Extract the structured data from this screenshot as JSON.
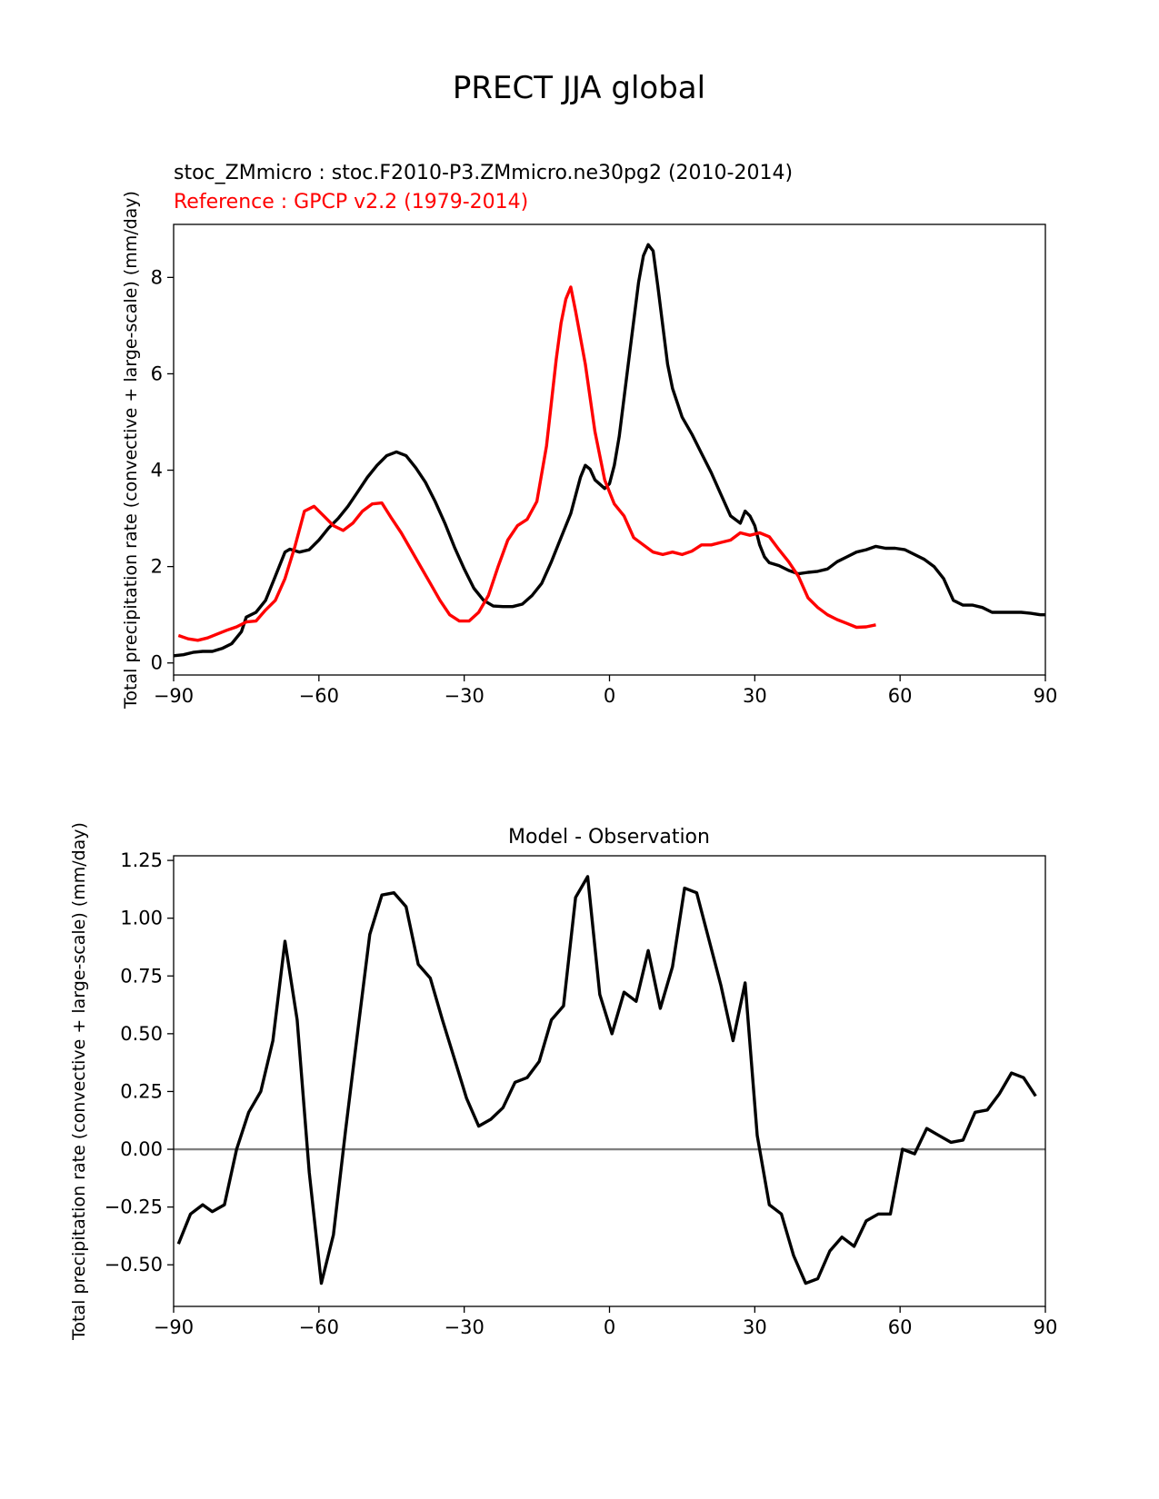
{
  "suptitle": "PRECT JJA global",
  "chart_data": [
    {
      "type": "line",
      "title_model": "stoc_ZMmicro : stoc.F2010-P3.ZMmicro.ne30pg2 (2010-2014)",
      "title_reference": "Reference : GPCP v2.2 (1979-2014)",
      "ylabel": "Total precipitation rate (convective + large-scale) (mm/day)",
      "xlim": [
        -90,
        90
      ],
      "ylim": [
        -0.25,
        9.1
      ],
      "xticks": [
        -90,
        -60,
        -30,
        0,
        30,
        60,
        90
      ],
      "xtick_labels": [
        "−90",
        "−60",
        "−30",
        "0",
        "30",
        "60",
        "90"
      ],
      "yticks": [
        0,
        2,
        4,
        6,
        8
      ],
      "ytick_labels": [
        "0",
        "2",
        "4",
        "6",
        "8"
      ],
      "series": [
        {
          "color": "#000000",
          "points": [
            [
              -90,
              0.15
            ],
            [
              -88,
              0.17
            ],
            [
              -86,
              0.22
            ],
            [
              -84,
              0.24
            ],
            [
              -82,
              0.24
            ],
            [
              -80,
              0.3
            ],
            [
              -78,
              0.4
            ],
            [
              -76,
              0.65
            ],
            [
              -75,
              0.95
            ],
            [
              -73,
              1.05
            ],
            [
              -71,
              1.3
            ],
            [
              -69,
              1.8
            ],
            [
              -67,
              2.3
            ],
            [
              -66,
              2.36
            ],
            [
              -64,
              2.3
            ],
            [
              -62,
              2.35
            ],
            [
              -60,
              2.55
            ],
            [
              -58,
              2.8
            ],
            [
              -56,
              3.0
            ],
            [
              -54,
              3.25
            ],
            [
              -52,
              3.55
            ],
            [
              -50,
              3.85
            ],
            [
              -48,
              4.1
            ],
            [
              -46,
              4.3
            ],
            [
              -44,
              4.38
            ],
            [
              -42,
              4.3
            ],
            [
              -40,
              4.05
            ],
            [
              -38,
              3.75
            ],
            [
              -36,
              3.35
            ],
            [
              -34,
              2.9
            ],
            [
              -32,
              2.4
            ],
            [
              -30,
              1.95
            ],
            [
              -28,
              1.55
            ],
            [
              -26,
              1.3
            ],
            [
              -24,
              1.18
            ],
            [
              -22,
              1.17
            ],
            [
              -20,
              1.17
            ],
            [
              -18,
              1.22
            ],
            [
              -16,
              1.4
            ],
            [
              -14,
              1.65
            ],
            [
              -12,
              2.1
            ],
            [
              -10,
              2.6
            ],
            [
              -8,
              3.1
            ],
            [
              -6,
              3.85
            ],
            [
              -5,
              4.1
            ],
            [
              -4,
              4.02
            ],
            [
              -3,
              3.8
            ],
            [
              -1,
              3.62
            ],
            [
              0,
              3.72
            ],
            [
              1,
              4.1
            ],
            [
              2,
              4.7
            ],
            [
              4,
              6.3
            ],
            [
              6,
              7.9
            ],
            [
              7,
              8.45
            ],
            [
              8,
              8.68
            ],
            [
              9,
              8.55
            ],
            [
              10,
              7.8
            ],
            [
              11,
              7.0
            ],
            [
              12,
              6.2
            ],
            [
              13,
              5.7
            ],
            [
              15,
              5.1
            ],
            [
              17,
              4.75
            ],
            [
              19,
              4.35
            ],
            [
              21,
              3.95
            ],
            [
              23,
              3.5
            ],
            [
              25,
              3.05
            ],
            [
              27,
              2.9
            ],
            [
              28,
              3.15
            ],
            [
              29,
              3.05
            ],
            [
              30,
              2.85
            ],
            [
              31,
              2.45
            ],
            [
              32,
              2.2
            ],
            [
              33,
              2.08
            ],
            [
              35,
              2.02
            ],
            [
              37,
              1.92
            ],
            [
              39,
              1.85
            ],
            [
              41,
              1.88
            ],
            [
              43,
              1.9
            ],
            [
              45,
              1.95
            ],
            [
              47,
              2.1
            ],
            [
              49,
              2.2
            ],
            [
              51,
              2.3
            ],
            [
              53,
              2.35
            ],
            [
              55,
              2.42
            ],
            [
              57,
              2.38
            ],
            [
              59,
              2.38
            ],
            [
              61,
              2.35
            ],
            [
              63,
              2.25
            ],
            [
              65,
              2.15
            ],
            [
              67,
              2.0
            ],
            [
              69,
              1.75
            ],
            [
              71,
              1.3
            ],
            [
              73,
              1.2
            ],
            [
              75,
              1.2
            ],
            [
              77,
              1.15
            ],
            [
              79,
              1.05
            ],
            [
              81,
              1.05
            ],
            [
              83,
              1.05
            ],
            [
              85,
              1.05
            ],
            [
              87,
              1.03
            ],
            [
              89,
              1.0
            ],
            [
              90,
              1.0
            ]
          ]
        },
        {
          "color": "#ff0000",
          "points": [
            [
              -89,
              0.57
            ],
            [
              -87,
              0.5
            ],
            [
              -85,
              0.47
            ],
            [
              -83,
              0.52
            ],
            [
              -81,
              0.6
            ],
            [
              -79,
              0.68
            ],
            [
              -77,
              0.75
            ],
            [
              -75,
              0.85
            ],
            [
              -73,
              0.87
            ],
            [
              -71,
              1.1
            ],
            [
              -69,
              1.3
            ],
            [
              -67,
              1.75
            ],
            [
              -65,
              2.4
            ],
            [
              -63,
              3.15
            ],
            [
              -61,
              3.25
            ],
            [
              -59,
              3.05
            ],
            [
              -57,
              2.85
            ],
            [
              -55,
              2.75
            ],
            [
              -53,
              2.9
            ],
            [
              -51,
              3.15
            ],
            [
              -49,
              3.3
            ],
            [
              -47,
              3.32
            ],
            [
              -45,
              3.0
            ],
            [
              -43,
              2.7
            ],
            [
              -41,
              2.35
            ],
            [
              -39,
              2.0
            ],
            [
              -37,
              1.65
            ],
            [
              -35,
              1.3
            ],
            [
              -33,
              1.0
            ],
            [
              -31,
              0.87
            ],
            [
              -29,
              0.87
            ],
            [
              -27,
              1.05
            ],
            [
              -25,
              1.4
            ],
            [
              -23,
              2.0
            ],
            [
              -21,
              2.55
            ],
            [
              -19,
              2.85
            ],
            [
              -17,
              2.98
            ],
            [
              -15,
              3.35
            ],
            [
              -13,
              4.5
            ],
            [
              -11,
              6.3
            ],
            [
              -10,
              7.05
            ],
            [
              -9,
              7.55
            ],
            [
              -8,
              7.8
            ],
            [
              -7,
              7.3
            ],
            [
              -5,
              6.2
            ],
            [
              -3,
              4.8
            ],
            [
              -1,
              3.8
            ],
            [
              1,
              3.3
            ],
            [
              3,
              3.05
            ],
            [
              5,
              2.6
            ],
            [
              7,
              2.45
            ],
            [
              9,
              2.3
            ],
            [
              11,
              2.25
            ],
            [
              13,
              2.3
            ],
            [
              15,
              2.25
            ],
            [
              17,
              2.32
            ],
            [
              19,
              2.45
            ],
            [
              21,
              2.45
            ],
            [
              23,
              2.5
            ],
            [
              25,
              2.55
            ],
            [
              27,
              2.7
            ],
            [
              29,
              2.65
            ],
            [
              31,
              2.7
            ],
            [
              33,
              2.62
            ],
            [
              35,
              2.35
            ],
            [
              37,
              2.1
            ],
            [
              39,
              1.8
            ],
            [
              41,
              1.35
            ],
            [
              43,
              1.15
            ],
            [
              45,
              1.0
            ],
            [
              47,
              0.9
            ],
            [
              49,
              0.82
            ],
            [
              51,
              0.74
            ],
            [
              53,
              0.75
            ],
            [
              55,
              0.79
            ]
          ]
        }
      ]
    },
    {
      "type": "line",
      "title": "Model - Observation",
      "ylabel": "Total precipitation rate (convective + large-scale) (mm/day)",
      "xlim": [
        -90,
        90
      ],
      "ylim": [
        -0.68,
        1.27
      ],
      "xticks": [
        -90,
        -60,
        -30,
        0,
        30,
        60,
        90
      ],
      "xtick_labels": [
        "−90",
        "−60",
        "−30",
        "0",
        "30",
        "60",
        "90"
      ],
      "yticks": [
        -0.5,
        -0.25,
        0,
        0.25,
        0.5,
        0.75,
        1.0,
        1.25
      ],
      "ytick_labels": [
        "−0.50",
        "−0.25",
        "0.00",
        "0.25",
        "0.50",
        "0.75",
        "1.00",
        "1.25"
      ],
      "zero_line_color": "#808080",
      "series": [
        {
          "color": "#000000",
          "points": [
            [
              -89,
              -0.41
            ],
            [
              -86.5,
              -0.28
            ],
            [
              -84,
              -0.24
            ],
            [
              -82,
              -0.27
            ],
            [
              -79.5,
              -0.24
            ],
            [
              -77,
              0.0
            ],
            [
              -74.5,
              0.16
            ],
            [
              -72,
              0.25
            ],
            [
              -69.5,
              0.47
            ],
            [
              -67,
              0.9
            ],
            [
              -64.5,
              0.56
            ],
            [
              -62,
              -0.1
            ],
            [
              -59.5,
              -0.58
            ],
            [
              -57,
              -0.37
            ],
            [
              -54.5,
              0.08
            ],
            [
              -52,
              0.51
            ],
            [
              -49.5,
              0.93
            ],
            [
              -47,
              1.1
            ],
            [
              -44.5,
              1.11
            ],
            [
              -42,
              1.05
            ],
            [
              -39.5,
              0.8
            ],
            [
              -37,
              0.74
            ],
            [
              -34.5,
              0.56
            ],
            [
              -32,
              0.39
            ],
            [
              -29.5,
              0.22
            ],
            [
              -27,
              0.1
            ],
            [
              -24.5,
              0.13
            ],
            [
              -22,
              0.18
            ],
            [
              -19.5,
              0.29
            ],
            [
              -17,
              0.31
            ],
            [
              -14.5,
              0.38
            ],
            [
              -12,
              0.56
            ],
            [
              -9.5,
              0.62
            ],
            [
              -7,
              1.09
            ],
            [
              -4.5,
              1.18
            ],
            [
              -2,
              0.67
            ],
            [
              0.5,
              0.5
            ],
            [
              3,
              0.68
            ],
            [
              5.5,
              0.64
            ],
            [
              8,
              0.86
            ],
            [
              10.5,
              0.61
            ],
            [
              13,
              0.79
            ],
            [
              15.5,
              1.13
            ],
            [
              18,
              1.11
            ],
            [
              20.5,
              0.91
            ],
            [
              23,
              0.71
            ],
            [
              25.5,
              0.47
            ],
            [
              28,
              0.72
            ],
            [
              30.5,
              0.06
            ],
            [
              33,
              -0.24
            ],
            [
              35.5,
              -0.28
            ],
            [
              38,
              -0.46
            ],
            [
              40.5,
              -0.58
            ],
            [
              43,
              -0.56
            ],
            [
              45.5,
              -0.44
            ],
            [
              48,
              -0.38
            ],
            [
              50.5,
              -0.42
            ],
            [
              53,
              -0.31
            ],
            [
              55.5,
              -0.28
            ],
            [
              58,
              -0.28
            ],
            [
              60.5,
              0.0
            ],
            [
              63,
              -0.02
            ],
            [
              65.5,
              0.09
            ],
            [
              68,
              0.06
            ],
            [
              70.5,
              0.03
            ],
            [
              73,
              0.04
            ],
            [
              75.5,
              0.16
            ],
            [
              78,
              0.17
            ],
            [
              80.5,
              0.24
            ],
            [
              83,
              0.33
            ],
            [
              85.5,
              0.31
            ],
            [
              88,
              0.23
            ]
          ]
        }
      ]
    }
  ]
}
